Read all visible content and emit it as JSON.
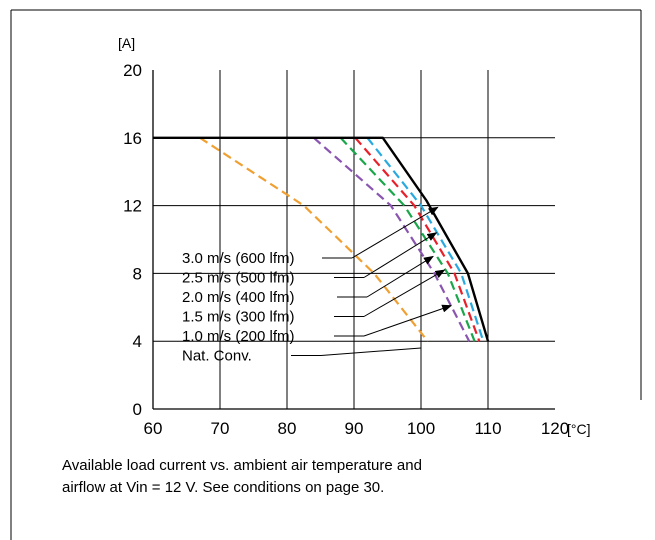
{
  "chart_data": {
    "type": "line",
    "ylabel": "[A]",
    "xlabel": "[°C]",
    "xlim": [
      60,
      120
    ],
    "ylim": [
      0,
      20
    ],
    "xticks": [
      60,
      70,
      80,
      90,
      100,
      110,
      120
    ],
    "yticks": [
      0,
      4,
      8,
      12,
      16,
      20
    ],
    "grid": true,
    "series": [
      {
        "name": "3.0 m/s (600 lfm)",
        "color": "#000000",
        "dash": "solid",
        "x": [
          60,
          94.3,
          100.8,
          107,
          110
        ],
        "y": [
          16,
          16,
          12.3,
          8,
          4
        ]
      },
      {
        "name": "2.5 m/s (500 lfm)",
        "color": "#2aa9e0",
        "dash": "dashed",
        "x": [
          92,
          100,
          106,
          109.3
        ],
        "y": [
          16,
          12,
          8,
          4
        ]
      },
      {
        "name": "2.0 m/s (400 lfm)",
        "color": "#e8202a",
        "dash": "dashed",
        "x": [
          90.2,
          99,
          105,
          108.7
        ],
        "y": [
          16,
          12,
          8,
          4
        ]
      },
      {
        "name": "1.5 m/s (300 lfm)",
        "color": "#1aa64a",
        "dash": "dashed",
        "x": [
          88,
          97.5,
          104,
          108
        ],
        "y": [
          16,
          12,
          8,
          4
        ]
      },
      {
        "name": "1.0 m/s (200 lfm)",
        "color": "#8a55b0",
        "dash": "dashed",
        "x": [
          84,
          95.5,
          102,
          107.2
        ],
        "y": [
          16,
          12,
          8,
          4
        ]
      },
      {
        "name": "Nat. Conv.",
        "color": "#f0a032",
        "dash": "dashed",
        "x": [
          67,
          82.5,
          93,
          101
        ],
        "y": [
          16,
          12,
          8,
          4
        ]
      }
    ]
  },
  "caption_line1": "Available load current vs. ambient air temperature and",
  "caption_line2": "airflow at Vin = 12 V. See conditions on page 30."
}
